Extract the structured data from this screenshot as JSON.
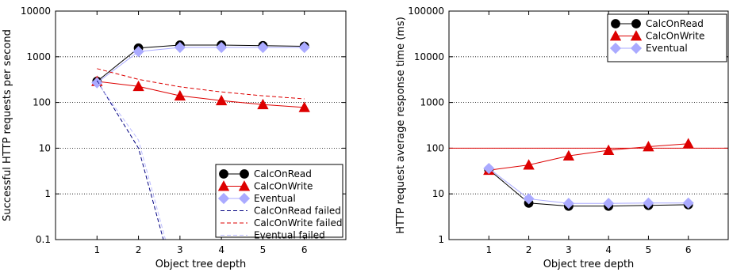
{
  "chart_data": [
    {
      "type": "line",
      "xlabel": "Object tree depth",
      "ylabel": "Successful HTTP requests per second",
      "yscale": "log",
      "xlim": [
        0,
        7
      ],
      "ylim": [
        0.1,
        10000
      ],
      "xticks": [
        1,
        2,
        3,
        4,
        5,
        6
      ],
      "yticks": [
        0.1,
        1,
        10,
        100,
        1000,
        10000
      ],
      "ytick_labels": [
        "0.1",
        "1",
        "10",
        "100",
        "1000",
        "10000"
      ],
      "grid": "horizontal dotted",
      "legend_position": "bottom-right",
      "series": [
        {
          "name": "CalcOnRead",
          "x": [
            1,
            2,
            3,
            4,
            5,
            6
          ],
          "y": [
            290,
            1550,
            1800,
            1800,
            1750,
            1700
          ],
          "color": "#000000",
          "marker": "circle",
          "style": "solid"
        },
        {
          "name": "CalcOnWrite",
          "x": [
            1,
            2,
            3,
            4,
            5,
            6
          ],
          "y": [
            290,
            225,
            140,
            110,
            90,
            78
          ],
          "color": "#dd0000",
          "marker": "triangle",
          "style": "solid"
        },
        {
          "name": "Eventual",
          "x": [
            1,
            2,
            3,
            4,
            5,
            6
          ],
          "y": [
            270,
            1300,
            1600,
            1600,
            1600,
            1600
          ],
          "color": "#aaaaff",
          "marker": "diamond",
          "style": "solid"
        },
        {
          "name": "CalcOnRead failed",
          "x": [
            1,
            2,
            2.6
          ],
          "y": [
            300,
            10,
            0.1
          ],
          "color": "#000080",
          "marker": "none",
          "style": "dashed"
        },
        {
          "name": "CalcOnWrite failed",
          "x": [
            1,
            2,
            3,
            4,
            5,
            6
          ],
          "y": [
            550,
            320,
            220,
            170,
            140,
            120
          ],
          "color": "#dd0000",
          "marker": "none",
          "style": "dashed"
        },
        {
          "name": "Eventual failed",
          "x": [
            1,
            2,
            2.65
          ],
          "y": [
            280,
            15,
            0.1
          ],
          "color": "#bbbbff",
          "marker": "none",
          "style": "dashed"
        }
      ]
    },
    {
      "type": "line",
      "xlabel": "Object tree depth",
      "ylabel": "HTTP request average response time (ms)",
      "yscale": "log",
      "xlim": [
        0,
        7
      ],
      "ylim": [
        1,
        100000
      ],
      "xticks": [
        1,
        2,
        3,
        4,
        5,
        6
      ],
      "yticks": [
        1,
        10,
        100,
        1000,
        10000,
        100000
      ],
      "ytick_labels": [
        "1",
        "10",
        "100",
        "1000",
        "10000",
        "100000"
      ],
      "grid": "horizontal dotted",
      "reference_line": {
        "y": 100,
        "color": "#dd0000"
      },
      "legend_position": "top-right",
      "series": [
        {
          "name": "CalcOnRead",
          "x": [
            1,
            2,
            3,
            4,
            5,
            6
          ],
          "y": [
            34,
            6.3,
            5.4,
            5.4,
            5.6,
            5.8
          ],
          "color": "#000000",
          "marker": "circle",
          "style": "solid"
        },
        {
          "name": "CalcOnWrite",
          "x": [
            1,
            2,
            3,
            4,
            5,
            6
          ],
          "y": [
            33,
            43,
            68,
            90,
            108,
            125
          ],
          "color": "#dd0000",
          "marker": "triangle",
          "style": "solid"
        },
        {
          "name": "Eventual",
          "x": [
            1,
            2,
            3,
            4,
            5,
            6
          ],
          "y": [
            36,
            7.8,
            6.2,
            6.2,
            6.3,
            6.3
          ],
          "color": "#aaaaff",
          "marker": "diamond",
          "style": "solid"
        }
      ]
    }
  ]
}
